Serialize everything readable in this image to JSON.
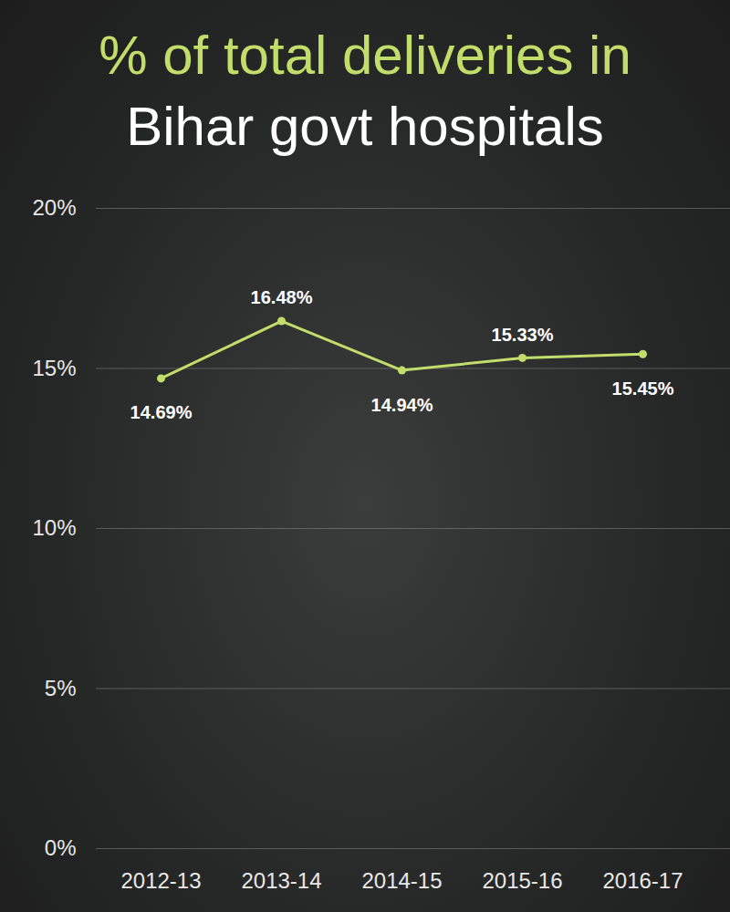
{
  "chart_data": {
    "type": "line",
    "title": "% of total deliveries in",
    "subtitle": "Bihar govt hospitals",
    "categories": [
      "2012-13",
      "2013-14",
      "2014-15",
      "2015-16",
      "2016-17"
    ],
    "values": [
      14.69,
      16.48,
      14.94,
      15.33,
      15.45
    ],
    "value_labels": [
      "14.69%",
      "16.48%",
      "14.94%",
      "15.33%",
      "15.45%"
    ],
    "color": "#c3dd6b",
    "marker": "circle",
    "ylim": [
      0,
      20
    ],
    "yticks": [
      {
        "value": 0,
        "label": "0%"
      },
      {
        "value": 5,
        "label": "5%"
      },
      {
        "value": 10,
        "label": "10%"
      },
      {
        "value": 15,
        "label": "15%"
      },
      {
        "value": 20,
        "label": "20%"
      }
    ],
    "grid": true,
    "data_labels": true
  }
}
